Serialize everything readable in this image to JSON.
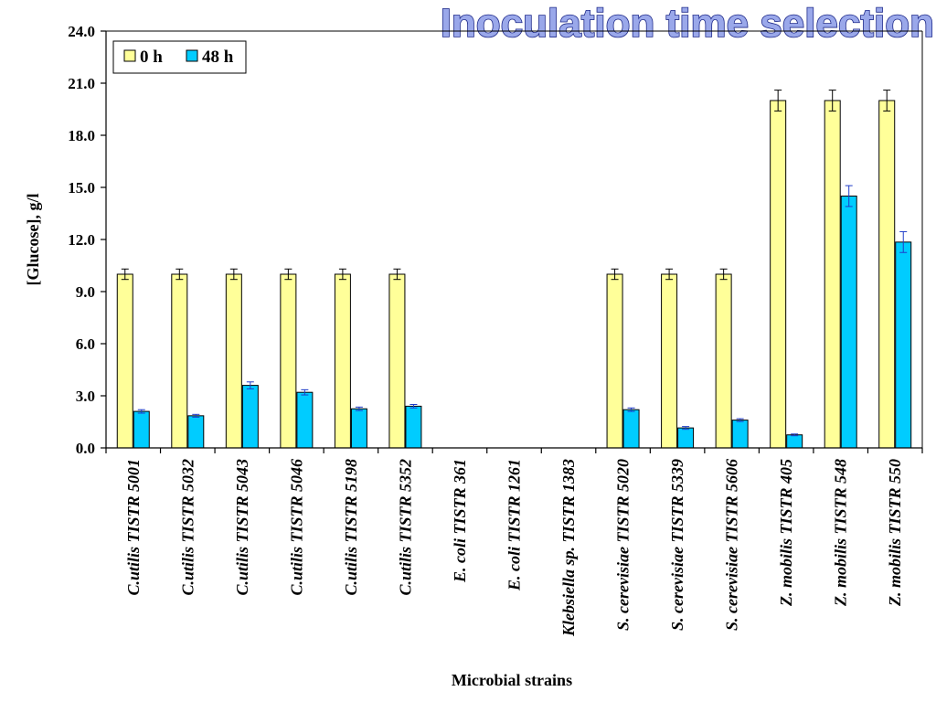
{
  "headline": "Inoculation time selection",
  "chart_data": {
    "type": "bar",
    "title": "",
    "xlabel": "Microbial strains",
    "ylabel": "[Glucose], g/l",
    "ylim": [
      0,
      24
    ],
    "yticks": [
      "0.0",
      "3.0",
      "6.0",
      "9.0",
      "12.0",
      "15.0",
      "18.0",
      "21.0",
      "24.0"
    ],
    "grid": false,
    "legend_position": "top-left",
    "categories": [
      "C.utilis TISTR 5001",
      "C.utilis TISTR 5032",
      "C.utilis TISTR 5043",
      "C.utilis TISTR 5046",
      "C.utilis TISTR 5198",
      "C.utilis TISTR 5352",
      "E. coli TISTR 361",
      "E. coli TISTR 1261",
      "Klebsiella sp. TISTR 1383",
      "S. cerevisiae TISTR 5020",
      "S. cerevisiae TISTR 5339",
      "S. cerevisiae TISTR 5606",
      "Z. mobilis TISTR 405",
      "Z. mobilis TISTR 548",
      "Z. mobilis TISTR 550"
    ],
    "series": [
      {
        "name": "0 h",
        "color": "#ffff99",
        "values": [
          10,
          10,
          10,
          10,
          10,
          10,
          0,
          0,
          0,
          10,
          10,
          10,
          20,
          20,
          20
        ],
        "errors": [
          0.3,
          0.3,
          0.3,
          0.3,
          0.3,
          0.3,
          0,
          0,
          0,
          0.3,
          0.3,
          0.3,
          0.6,
          0.6,
          0.6
        ]
      },
      {
        "name": "48 h",
        "color": "#00ccff",
        "values": [
          2.1,
          1.85,
          3.6,
          3.2,
          2.25,
          2.4,
          0,
          0,
          0,
          2.2,
          1.15,
          1.6,
          0.75,
          14.5,
          11.85
        ],
        "errors": [
          0.1,
          0.08,
          0.2,
          0.15,
          0.1,
          0.1,
          0,
          0,
          0,
          0.1,
          0.08,
          0.08,
          0.05,
          0.6,
          0.6
        ]
      }
    ]
  }
}
